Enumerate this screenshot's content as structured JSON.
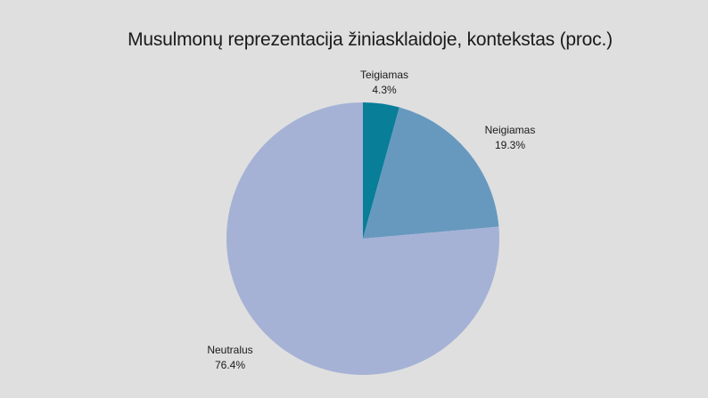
{
  "chart_data": {
    "type": "pie",
    "title": "Musulmonų reprezentacija žiniasklaidoje, kontekstas (proc.)",
    "slices": [
      {
        "label": "Teigiamas",
        "value": 4.3,
        "value_label": "4.3%",
        "color": "#087e98"
      },
      {
        "label": "Neigiamas",
        "value": 19.3,
        "value_label": "19.3%",
        "color": "#6799bf"
      },
      {
        "label": "Neutralus",
        "value": 76.4,
        "value_label": "76.4%",
        "color": "#a5b2d6"
      }
    ],
    "start_angle": "12 o'clock",
    "direction": "clockwise"
  }
}
